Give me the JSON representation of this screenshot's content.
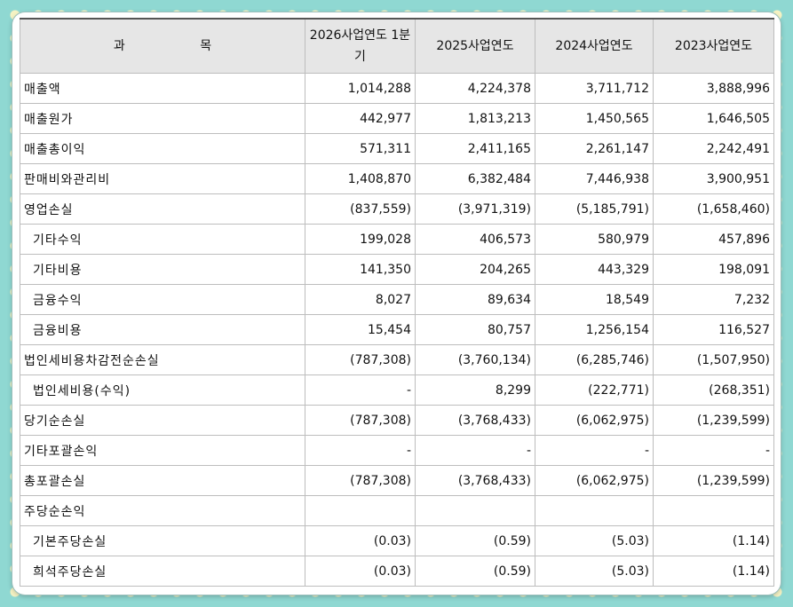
{
  "header": {
    "subject": "과 목",
    "col1": "2026사업연도 1분기",
    "col2": "2025사업연도",
    "col3": "2024사업연도",
    "col4": "2023사업연도"
  },
  "rows": [
    {
      "label": "매출액",
      "v": [
        "1,014,288",
        "4,224,378",
        "3,711,712",
        "3,888,996"
      ]
    },
    {
      "label": "매출원가",
      "v": [
        "442,977",
        "1,813,213",
        "1,450,565",
        "1,646,505"
      ]
    },
    {
      "label": "매출총이익",
      "v": [
        "571,311",
        "2,411,165",
        "2,261,147",
        "2,242,491"
      ]
    },
    {
      "label": "판매비와관리비",
      "v": [
        "1,408,870",
        "6,382,484",
        "7,446,938",
        "3,900,951"
      ]
    },
    {
      "label": "영업손실",
      "v": [
        "(837,559)",
        "(3,971,319)",
        "(5,185,791)",
        "(1,658,460)"
      ]
    },
    {
      "label": "기타수익",
      "v": [
        "199,028",
        "406,573",
        "580,979",
        "457,896"
      ]
    },
    {
      "label": "기타비용",
      "v": [
        "141,350",
        "204,265",
        "443,329",
        "198,091"
      ]
    },
    {
      "label": "금융수익",
      "v": [
        "8,027",
        "89,634",
        "18,549",
        "7,232"
      ]
    },
    {
      "label": "금융비용",
      "v": [
        "15,454",
        "80,757",
        "1,256,154",
        "116,527"
      ]
    },
    {
      "label": "법인세비용차감전순손실",
      "v": [
        "(787,308)",
        "(3,760,134)",
        "(6,285,746)",
        "(1,507,950)"
      ]
    },
    {
      "label": "법인세비용(수익)",
      "v": [
        "-",
        "8,299",
        "(222,771)",
        "(268,351)"
      ]
    },
    {
      "label": "당기순손실",
      "v": [
        "(787,308)",
        "(3,768,433)",
        "(6,062,975)",
        "(1,239,599)"
      ]
    },
    {
      "label": "기타포괄손익",
      "v": [
        "-",
        "-",
        "-",
        "-"
      ]
    },
    {
      "label": "총포괄손실",
      "v": [
        "(787,308)",
        "(3,768,433)",
        "(6,062,975)",
        "(1,239,599)"
      ]
    },
    {
      "label": "주당순손익",
      "v": [
        "",
        "",
        "",
        ""
      ]
    },
    {
      "label": "기본주당손실",
      "v": [
        "(0.03)",
        "(0.59)",
        "(5.03)",
        "(1.14)"
      ]
    },
    {
      "label": "희석주당손실",
      "v": [
        "(0.03)",
        "(0.59)",
        "(5.03)",
        "(1.14)"
      ]
    }
  ]
}
